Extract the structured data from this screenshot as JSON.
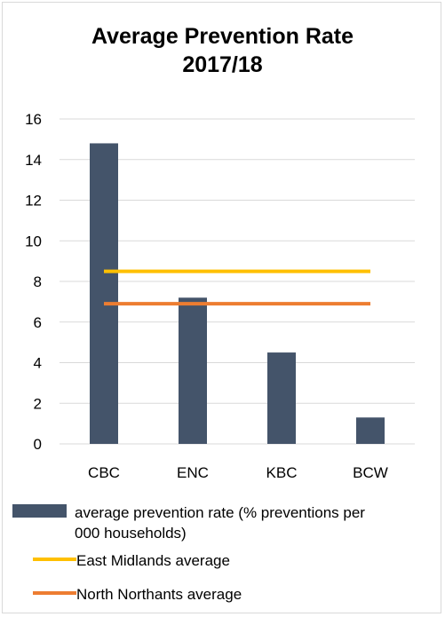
{
  "chart_data": {
    "type": "bar",
    "title_line1": "Average Prevention Rate",
    "title_line2": "2017/18",
    "categories": [
      "CBC",
      "ENC",
      "KBC",
      "BCW"
    ],
    "series": [
      {
        "name": "average prevention rate (% preventions per 000 households)",
        "type": "bar",
        "values": [
          14.8,
          7.2,
          4.5,
          1.3
        ],
        "color": "#44546a"
      },
      {
        "name": "East Midlands average",
        "type": "line",
        "values": [
          8.5,
          8.5,
          8.5,
          8.5
        ],
        "color": "#ffc000"
      },
      {
        "name": "North Northants average",
        "type": "line",
        "values": [
          6.9,
          6.9,
          6.9,
          6.9
        ],
        "color": "#ed7d31"
      }
    ],
    "ylim": [
      0,
      16
    ],
    "yticks": [
      "0",
      "2",
      "4",
      "6",
      "8",
      "10",
      "12",
      "14",
      "16"
    ],
    "grid": true,
    "legend_position": "bottom",
    "legend": {
      "bar_line1": "average prevention rate (% preventions per",
      "bar_line2": "000 households)",
      "east": "East Midlands average",
      "north": "North Northants average"
    }
  }
}
